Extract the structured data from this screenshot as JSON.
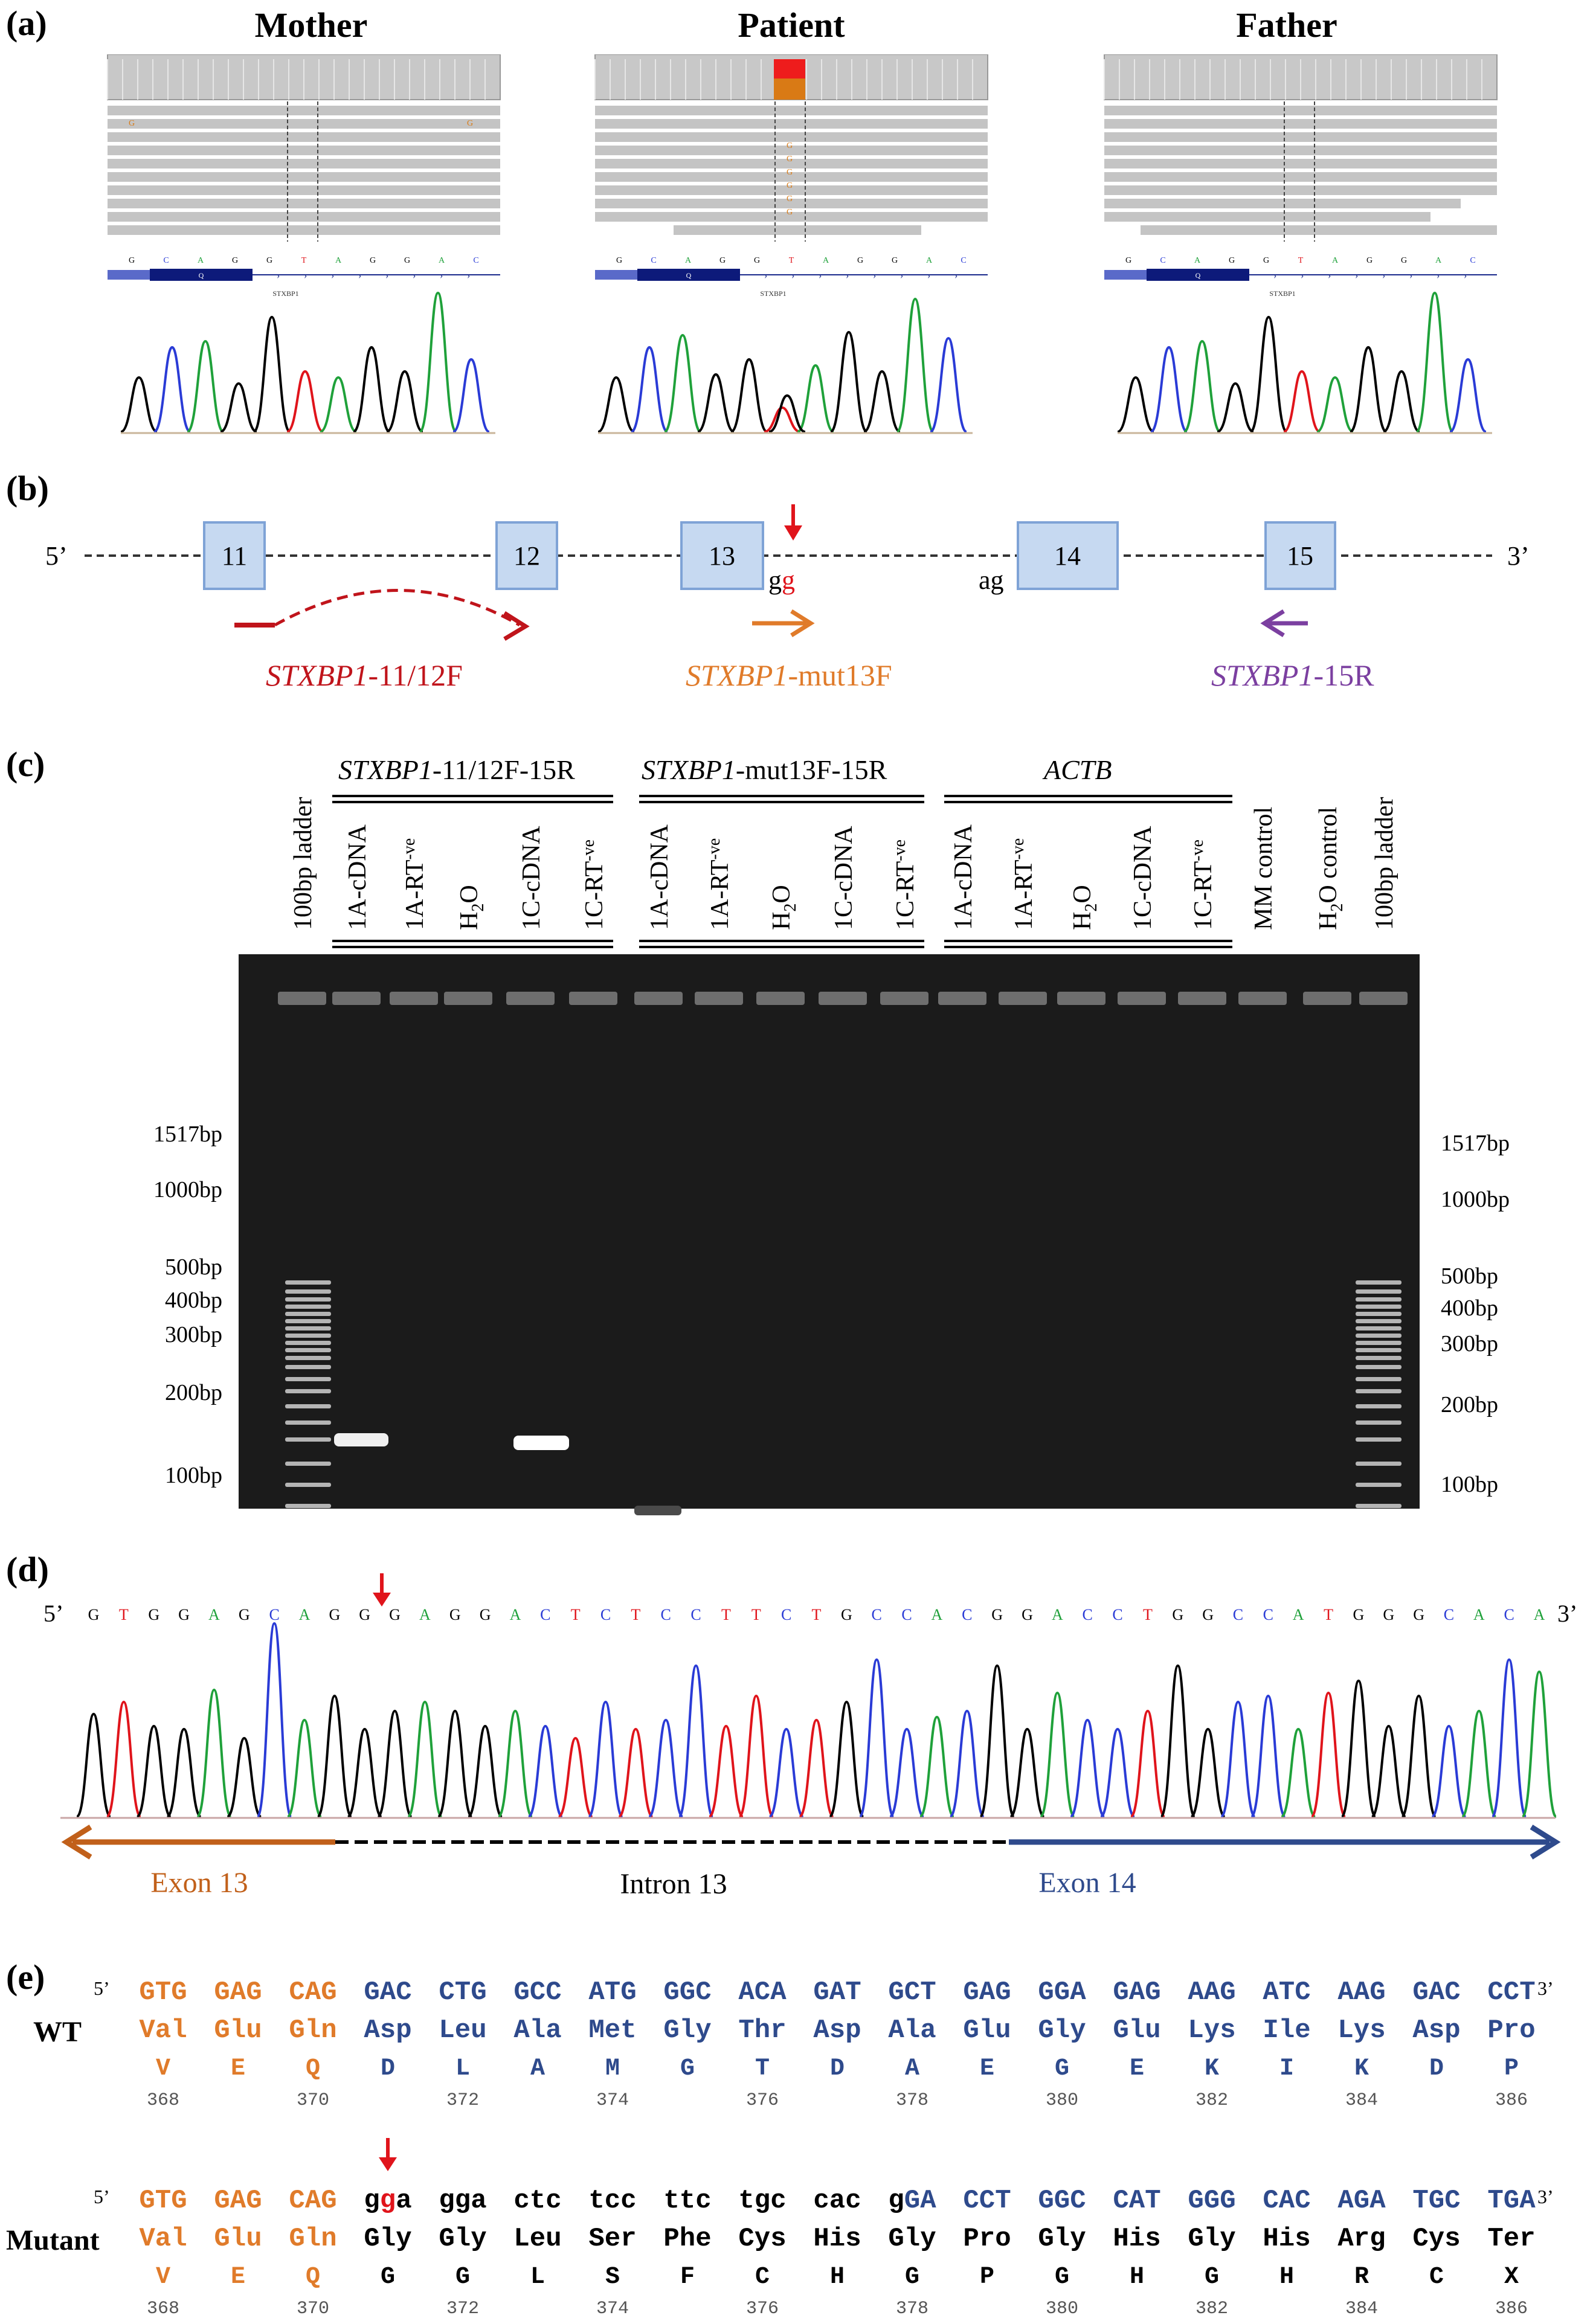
{
  "panel_a": {
    "label": "(a)",
    "columns": [
      {
        "title": "Mother"
      },
      {
        "title": "Patient"
      },
      {
        "title": "Father"
      }
    ],
    "ref_bases": [
      "G",
      "C",
      "A",
      "G",
      "G",
      "T",
      "A",
      "G",
      "G",
      "A",
      "C"
    ],
    "gene": "STXBP1",
    "exon_tag": "Q",
    "read_marks_mother": [
      "G",
      "G"
    ],
    "read_marks_patient": [
      "G",
      "G",
      "G",
      "G",
      "G",
      "G"
    ],
    "read_marks_father": []
  },
  "panel_b": {
    "label": "(b)",
    "five_prime": "5’",
    "three_prime": "3’",
    "exons": [
      "11",
      "12",
      "13",
      "14",
      "15"
    ],
    "splice_donor": {
      "first": "g",
      "second": "g"
    },
    "splice_acceptor": "ag",
    "primers": [
      {
        "italic": "STXBP1",
        "suffix": "-11/12F",
        "color": "#c0141b"
      },
      {
        "italic": "STXBP1",
        "suffix": "-mut13F",
        "color": "#e07b2a"
      },
      {
        "italic": "STXBP1",
        "suffix": "-15R",
        "color": "#7b3fa0"
      }
    ]
  },
  "panel_c": {
    "label": "(c)",
    "groups": [
      {
        "italic": "STXBP1",
        "suffix": "-11/12F-15R"
      },
      {
        "italic": "STXBP1",
        "suffix": "-mut13F-15R"
      },
      {
        "italic": "ACTB",
        "suffix": ""
      }
    ],
    "lanes": [
      "100bp ladder",
      "1A-cDNA",
      "1A-RT-ve",
      "H2O",
      "1C-cDNA",
      "1C-RT-ve",
      "1A-cDNA",
      "1A-RT-ve",
      "H2O",
      "1C-cDNA",
      "1C-RT-ve",
      "1A-cDNA",
      "1A-RT-ve",
      "H2O",
      "1C-cDNA",
      "1C-RT-ve",
      "MM control",
      "H2O control",
      "100bp ladder"
    ],
    "left_sizes": [
      "1517bp",
      "1000bp",
      "500bp",
      "400bp",
      "300bp",
      "200bp",
      "100bp"
    ],
    "right_sizes": [
      "1517bp",
      "1000bp",
      "500bp",
      "400bp",
      "300bp",
      "200bp",
      "100bp"
    ]
  },
  "panel_d": {
    "label": "(d)",
    "five_prime": "5’",
    "three_prime": "3’",
    "sequence": "GTGGAGCAGGGAGGACTCTCCTTCTGCCACGGACCTGGCCATGGGCACA",
    "regions": [
      "Exon 13",
      "Intron 13",
      "Exon 14"
    ]
  },
  "panel_e": {
    "label": "(e)",
    "five_prime": "5’",
    "three_prime": "3’",
    "positions": [
      "368",
      "370",
      "372",
      "374",
      "376",
      "378",
      "380",
      "382",
      "384",
      "386"
    ],
    "wt": {
      "label": "WT",
      "codons": [
        "GTG",
        "GAG",
        "CAG",
        "GAC",
        "CTG",
        "GCC",
        "ATG",
        "GGC",
        "ACA",
        "GAT",
        "GCT",
        "GAG",
        "GGA",
        "GAG",
        "AAG",
        "ATC",
        "AAG",
        "GAC",
        "CCT"
      ],
      "aa3": [
        "Val",
        "Glu",
        "Gln",
        "Asp",
        "Leu",
        "Ala",
        "Met",
        "Gly",
        "Thr",
        "Asp",
        "Ala",
        "Glu",
        "Gly",
        "Glu",
        "Lys",
        "Ile",
        "Lys",
        "Asp",
        "Pro"
      ],
      "aa1": [
        "V",
        "E",
        "Q",
        "D",
        "L",
        "A",
        "M",
        "G",
        "T",
        "D",
        "A",
        "E",
        "G",
        "E",
        "K",
        "I",
        "K",
        "D",
        "P"
      ]
    },
    "mutant": {
      "label": "Mutant",
      "codons": [
        "GTG",
        "GAG",
        "CAG",
        "gga",
        "gga",
        "ctc",
        "tcc",
        "ttc",
        "tgc",
        "cac",
        "gGA",
        "CCT",
        "GGC",
        "CAT",
        "GGG",
        "CAC",
        "AGA",
        "TGC",
        "TGA"
      ],
      "aa3": [
        "Val",
        "Glu",
        "Gln",
        "Gly",
        "Gly",
        "Leu",
        "Ser",
        "Phe",
        "Cys",
        "His",
        "Gly",
        "Pro",
        "Gly",
        "His",
        "Gly",
        "His",
        "Arg",
        "Cys",
        "Ter"
      ],
      "aa1": [
        "V",
        "E",
        "Q",
        "G",
        "G",
        "L",
        "S",
        "F",
        "C",
        "H",
        "G",
        "P",
        "G",
        "H",
        "G",
        "H",
        "R",
        "C",
        "X"
      ]
    },
    "colors": {
      "exon13": "#e07b2a",
      "exon14": "#2e4a8c",
      "intron": "#000000",
      "mutation": "#e0141b"
    }
  }
}
